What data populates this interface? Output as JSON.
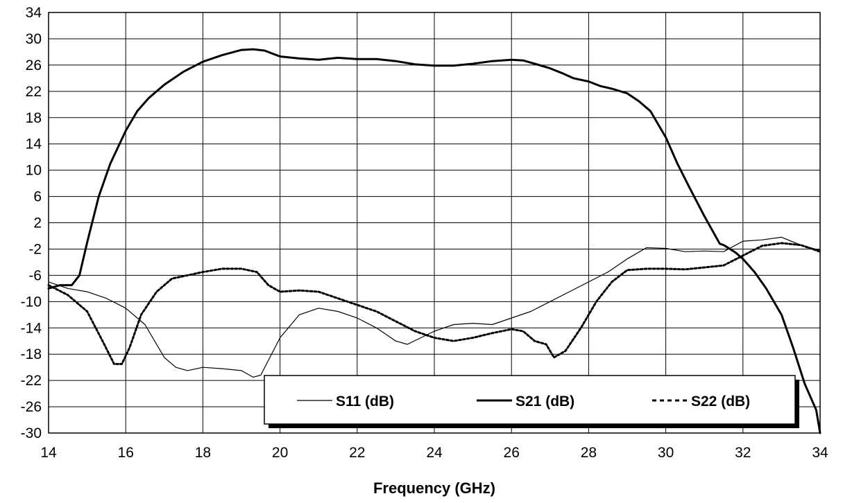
{
  "chart_data": {
    "type": "line",
    "title": "",
    "xlabel": "Frequency (GHz)",
    "ylabel": "",
    "xlim": [
      14,
      34
    ],
    "ylim": [
      -30,
      34
    ],
    "x_ticks": [
      "14",
      "16",
      "18",
      "20",
      "22",
      "24",
      "26",
      "28",
      "30",
      "32",
      "34"
    ],
    "y_ticks": [
      "34",
      "30",
      "26",
      "22",
      "18",
      "14",
      "10",
      "6",
      "2",
      "-2",
      "-6",
      "-10",
      "-14",
      "-18",
      "-22",
      "-26",
      "-30"
    ],
    "grid": true,
    "legend_position": "bottom-right",
    "series": [
      {
        "name": "S11 (dB)",
        "style": "thin",
        "color": "#000000",
        "x": [
          14,
          14.5,
          15,
          15.5,
          16,
          16.5,
          17,
          17.3,
          17.6,
          18,
          18.5,
          19,
          19.3,
          19.5,
          20,
          20.5,
          21,
          21.5,
          22,
          22.5,
          23,
          23.3,
          24,
          24.5,
          25,
          25.5,
          26,
          26.5,
          27,
          27.5,
          28,
          28.5,
          29,
          29.5,
          30,
          30.5,
          31,
          31.5,
          32,
          32.5,
          33,
          33.5,
          34
        ],
        "y": [
          -7,
          -8,
          -8.5,
          -9.5,
          -11,
          -13.5,
          -18.5,
          -20,
          -20.5,
          -20,
          -20.2,
          -20.5,
          -21.5,
          -21.2,
          -15.5,
          -12,
          -11,
          -11.5,
          -12.5,
          -14,
          -16,
          -16.5,
          -14.5,
          -13.5,
          -13.3,
          -13.5,
          -12.5,
          -11.5,
          -10,
          -8.5,
          -7,
          -5.5,
          -3.5,
          -1.8,
          -1.9,
          -2.4,
          -2.3,
          -2.4,
          -0.8,
          -0.6,
          -0.2,
          -1.4,
          -2.2
        ]
      },
      {
        "name": "S21 (dB)",
        "style": "thick",
        "color": "#000000",
        "x": [
          14,
          14.3,
          14.6,
          14.8,
          15,
          15.3,
          15.6,
          16,
          16.3,
          16.6,
          17,
          17.5,
          18,
          18.5,
          19,
          19.3,
          19.6,
          20,
          20.5,
          21,
          21.5,
          22,
          22.5,
          23,
          23.5,
          24,
          24.5,
          25,
          25.5,
          26,
          26.3,
          26.6,
          27,
          27.3,
          27.6,
          28,
          28.3,
          28.6,
          29,
          29.3,
          29.6,
          30,
          30.3,
          30.6,
          31,
          31.4,
          31.5,
          31.8,
          32,
          32.3,
          32.6,
          33,
          33.3,
          33.6,
          33.9,
          34
        ],
        "y": [
          -8,
          -7.5,
          -7.5,
          -6,
          -1,
          6,
          11,
          16,
          19,
          21,
          23,
          25,
          26.5,
          27.5,
          28.3,
          28.4,
          28.2,
          27.3,
          27,
          26.8,
          27.1,
          26.9,
          26.9,
          26.6,
          26.1,
          25.9,
          25.9,
          26.2,
          26.6,
          26.8,
          26.7,
          26.2,
          25.5,
          24.8,
          24,
          23.5,
          22.8,
          22.4,
          21.7,
          20.5,
          19,
          15,
          11,
          7.5,
          3,
          -1.2,
          -1.4,
          -2.5,
          -3.5,
          -5.5,
          -8,
          -12,
          -17,
          -22.5,
          -26.5,
          -30
        ]
      },
      {
        "name": "S22 (dB)",
        "style": "dashed",
        "color": "#000000",
        "x": [
          14,
          14.5,
          15,
          15.4,
          15.7,
          15.9,
          16.1,
          16.4,
          16.8,
          17.2,
          17.6,
          18,
          18.5,
          19,
          19.4,
          19.7,
          20,
          20.5,
          21,
          21.5,
          22,
          22.5,
          23,
          23.5,
          24,
          24.5,
          25,
          25.5,
          26,
          26.3,
          26.6,
          26.9,
          27.1,
          27.4,
          27.8,
          28.2,
          28.6,
          29,
          29.5,
          30,
          30.5,
          31,
          31.5,
          32,
          32.5,
          33,
          33.5,
          34
        ],
        "y": [
          -7.5,
          -9,
          -11.5,
          -16,
          -19.5,
          -19.5,
          -17,
          -12,
          -8.5,
          -6.5,
          -6,
          -5.5,
          -5,
          -5,
          -5.5,
          -7.5,
          -8.5,
          -8.3,
          -8.5,
          -9.5,
          -10.5,
          -11.5,
          -13,
          -14.5,
          -15.5,
          -16,
          -15.5,
          -14.8,
          -14.2,
          -14.5,
          -16,
          -16.5,
          -18.5,
          -17.5,
          -14,
          -10,
          -7,
          -5.2,
          -5,
          -5,
          -5.1,
          -4.8,
          -4.5,
          -3,
          -1.5,
          -1.1,
          -1.4,
          -2.4
        ]
      }
    ]
  }
}
